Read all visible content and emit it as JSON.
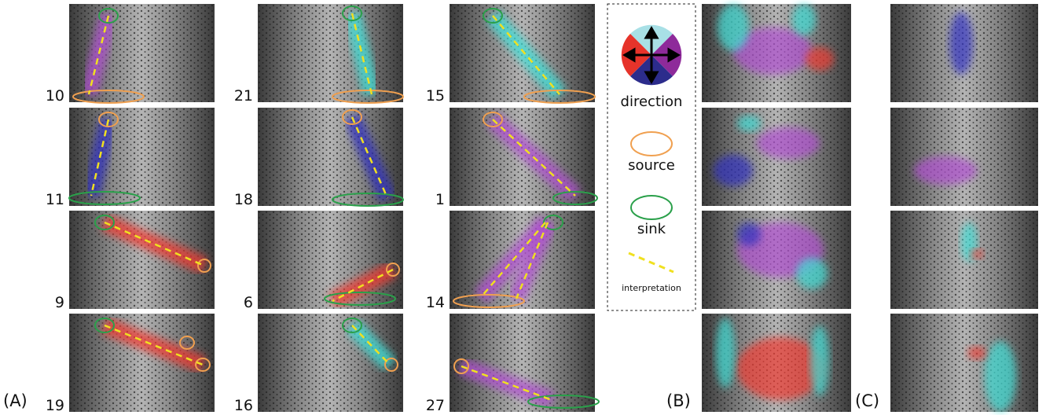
{
  "panel_labels": [
    "(A)",
    "(B)",
    "(C)"
  ],
  "panel_a": {
    "ids": [
      [
        "10",
        "11",
        "9",
        "19"
      ],
      [
        "21",
        "18",
        "6",
        "16"
      ],
      [
        "15",
        "1",
        "14",
        "27"
      ]
    ]
  },
  "legend": {
    "direction": "direction",
    "source": "source",
    "sink": "sink",
    "interpretation": "interpretation"
  }
}
